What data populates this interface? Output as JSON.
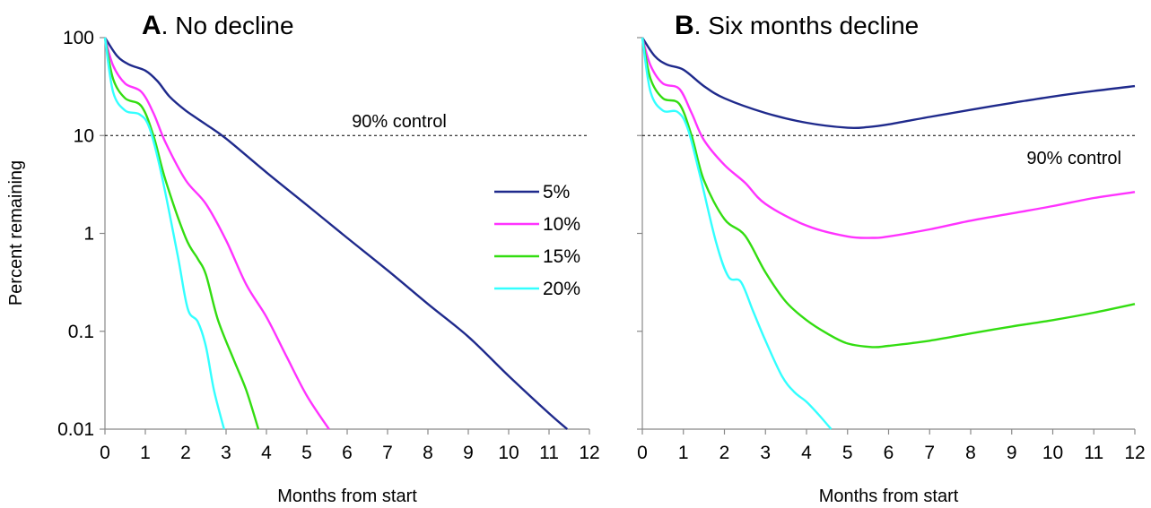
{
  "ylabel": "Percent remaining",
  "xlabel": "Months from start",
  "control_label": "90% control",
  "control_value": 10,
  "x_ticks": [
    0,
    1,
    2,
    3,
    4,
    5,
    6,
    7,
    8,
    9,
    10,
    11,
    12
  ],
  "y_ticks": [
    {
      "value": 100,
      "label": "100"
    },
    {
      "value": 10,
      "label": "10"
    },
    {
      "value": 1,
      "label": "1"
    },
    {
      "value": 0.1,
      "label": "0.1"
    },
    {
      "value": 0.01,
      "label": "0.01"
    }
  ],
  "colors": {
    "5%": "#1f2a8c",
    "10%": "#ff33ff",
    "15%": "#33dd11",
    "20%": "#33ffff"
  },
  "legend": [
    "5%",
    "10%",
    "15%",
    "20%"
  ],
  "chart_data": [
    {
      "type": "line",
      "panel_letter": "A",
      "title": ". No decline",
      "xlabel": "Months from start",
      "ylabel": "Percent remaining",
      "y_scale": "log",
      "xlim": [
        0,
        12
      ],
      "ylim": [
        0.01,
        100
      ],
      "series": [
        {
          "name": "5%",
          "points": [
            [
              0,
              100
            ],
            [
              0.3,
              65
            ],
            [
              0.6,
              53
            ],
            [
              1,
              46
            ],
            [
              1.3,
              36
            ],
            [
              1.6,
              25
            ],
            [
              2,
              18
            ],
            [
              2.5,
              13
            ],
            [
              3,
              9.3
            ],
            [
              4,
              4.2
            ],
            [
              5,
              1.95
            ],
            [
              6,
              0.9
            ],
            [
              7,
              0.42
            ],
            [
              8,
              0.19
            ],
            [
              9,
              0.088
            ],
            [
              10,
              0.035
            ],
            [
              11,
              0.0145
            ],
            [
              11.45,
              0.01
            ]
          ]
        },
        {
          "name": "10%",
          "points": [
            [
              0,
              100
            ],
            [
              0.2,
              52
            ],
            [
              0.5,
              34
            ],
            [
              0.9,
              28
            ],
            [
              1.2,
              17
            ],
            [
              1.5,
              8.5
            ],
            [
              2,
              3.5
            ],
            [
              2.5,
              2
            ],
            [
              3,
              0.85
            ],
            [
              3.5,
              0.3
            ],
            [
              4,
              0.14
            ],
            [
              4.5,
              0.055
            ],
            [
              5,
              0.022
            ],
            [
              5.55,
              0.01
            ]
          ]
        },
        {
          "name": "15%",
          "points": [
            [
              0,
              100
            ],
            [
              0.2,
              38
            ],
            [
              0.5,
              24
            ],
            [
              0.9,
              20
            ],
            [
              1.2,
              10
            ],
            [
              1.5,
              3.5
            ],
            [
              2,
              0.9
            ],
            [
              2.3,
              0.55
            ],
            [
              2.5,
              0.38
            ],
            [
              2.8,
              0.13
            ],
            [
              3.2,
              0.05
            ],
            [
              3.5,
              0.025
            ],
            [
              3.8,
              0.01
            ]
          ]
        },
        {
          "name": "20%",
          "points": [
            [
              0,
              100
            ],
            [
              0.2,
              28
            ],
            [
              0.5,
              18
            ],
            [
              0.85,
              16.5
            ],
            [
              1.1,
              12
            ],
            [
              1.4,
              4
            ],
            [
              1.8,
              0.6
            ],
            [
              2.05,
              0.17
            ],
            [
              2.3,
              0.125
            ],
            [
              2.5,
              0.07
            ],
            [
              2.7,
              0.025
            ],
            [
              2.95,
              0.01
            ]
          ]
        }
      ]
    },
    {
      "type": "line",
      "panel_letter": "B",
      "title": ". Six months decline",
      "xlabel": "Months from start",
      "ylabel": "",
      "y_scale": "log",
      "xlim": [
        0,
        12
      ],
      "ylim": [
        0.01,
        100
      ],
      "series": [
        {
          "name": "5%",
          "points": [
            [
              0,
              100
            ],
            [
              0.3,
              65
            ],
            [
              0.6,
              53
            ],
            [
              1,
              47
            ],
            [
              1.5,
              32
            ],
            [
              2,
              24
            ],
            [
              3,
              17
            ],
            [
              4,
              13.5
            ],
            [
              5,
              12
            ],
            [
              5.5,
              12.2
            ],
            [
              6,
              13
            ],
            [
              7,
              15.5
            ],
            [
              8,
              18.3
            ],
            [
              9,
              21.5
            ],
            [
              10,
              25
            ],
            [
              11,
              28.5
            ],
            [
              12,
              32
            ]
          ]
        },
        {
          "name": "10%",
          "points": [
            [
              0,
              100
            ],
            [
              0.2,
              52
            ],
            [
              0.5,
              34
            ],
            [
              0.9,
              30
            ],
            [
              1.2,
              17
            ],
            [
              1.5,
              9
            ],
            [
              2,
              5
            ],
            [
              2.5,
              3.3
            ],
            [
              3,
              2
            ],
            [
              4,
              1.2
            ],
            [
              5,
              0.93
            ],
            [
              5.6,
              0.9
            ],
            [
              6,
              0.93
            ],
            [
              7,
              1.1
            ],
            [
              8,
              1.35
            ],
            [
              9,
              1.6
            ],
            [
              10,
              1.9
            ],
            [
              11,
              2.3
            ],
            [
              12,
              2.65
            ]
          ]
        },
        {
          "name": "15%",
          "points": [
            [
              0,
              100
            ],
            [
              0.2,
              38
            ],
            [
              0.5,
              24
            ],
            [
              0.9,
              21
            ],
            [
              1.2,
              10
            ],
            [
              1.5,
              3.5
            ],
            [
              2,
              1.4
            ],
            [
              2.5,
              0.95
            ],
            [
              3,
              0.4
            ],
            [
              3.5,
              0.2
            ],
            [
              4,
              0.13
            ],
            [
              4.5,
              0.095
            ],
            [
              5,
              0.075
            ],
            [
              5.6,
              0.069
            ],
            [
              6,
              0.071
            ],
            [
              7,
              0.08
            ],
            [
              8,
              0.095
            ],
            [
              9,
              0.112
            ],
            [
              10,
              0.13
            ],
            [
              11,
              0.155
            ],
            [
              12,
              0.19
            ]
          ]
        },
        {
          "name": "20%",
          "points": [
            [
              0,
              100
            ],
            [
              0.2,
              28
            ],
            [
              0.5,
              18
            ],
            [
              0.85,
              17.5
            ],
            [
              1.1,
              12
            ],
            [
              1.4,
              4
            ],
            [
              1.8,
              0.8
            ],
            [
              2.1,
              0.36
            ],
            [
              2.4,
              0.32
            ],
            [
              2.7,
              0.16
            ],
            [
              3,
              0.08
            ],
            [
              3.4,
              0.035
            ],
            [
              3.7,
              0.024
            ],
            [
              4,
              0.019
            ],
            [
              4.3,
              0.014
            ],
            [
              4.6,
              0.01
            ]
          ]
        }
      ]
    }
  ]
}
